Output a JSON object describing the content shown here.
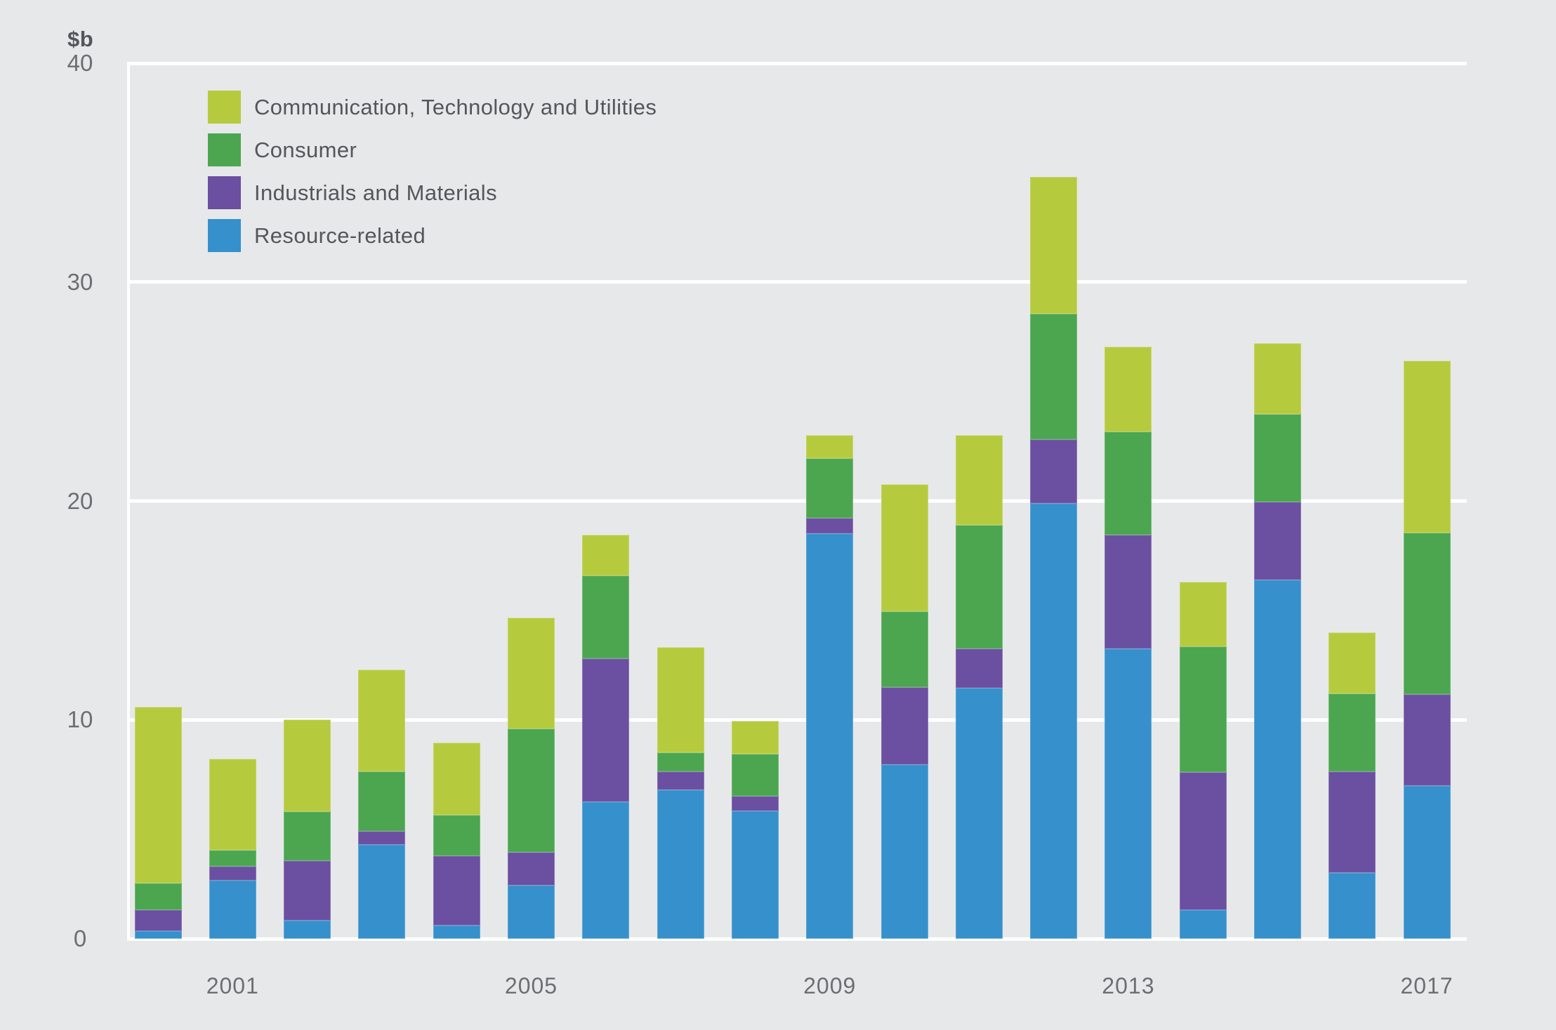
{
  "colors": {
    "background": "#e7e8e9",
    "gridline": "#ffffff",
    "axis_text": "#6d6e71",
    "label_text": "#55565a"
  },
  "chart_data": {
    "type": "bar",
    "stacked": true,
    "unit": "$b",
    "categories": [
      "2000",
      "2001",
      "2002",
      "2003",
      "2004",
      "2005",
      "2006",
      "2007",
      "2008",
      "2009",
      "2010",
      "2011",
      "2012",
      "2013",
      "2014",
      "2015",
      "2016",
      "2017"
    ],
    "x_axis_labels": [
      {
        "label": "2001",
        "category_index": 1
      },
      {
        "label": "2005",
        "category_index": 5
      },
      {
        "label": "2009",
        "category_index": 9
      },
      {
        "label": "2013",
        "category_index": 13
      },
      {
        "label": "2017",
        "category_index": 17
      }
    ],
    "yticks": [
      0,
      10,
      20,
      30,
      40
    ],
    "ylim": [
      0,
      40
    ],
    "grid": "horizontal white gridlines on light gray background",
    "legend_position": "inside top-left",
    "stack_order_bottom_to_top": [
      "Resource-related",
      "Industrials and Materials",
      "Consumer",
      "Communication, Technology and Utilities"
    ],
    "series": [
      {
        "name": "Communication, Technology and Utilities",
        "color": "#b6ca3e",
        "values": [
          8.05,
          4.15,
          4.2,
          4.65,
          3.3,
          5.05,
          1.85,
          4.8,
          1.5,
          1.05,
          5.8,
          4.1,
          6.25,
          3.9,
          2.95,
          3.25,
          2.8,
          7.85
        ]
      },
      {
        "name": "Consumer",
        "color": "#4ba64f",
        "values": [
          1.25,
          0.75,
          2.25,
          2.75,
          1.85,
          5.65,
          3.8,
          0.85,
          1.95,
          2.75,
          3.45,
          5.65,
          5.75,
          4.7,
          5.75,
          4.0,
          3.55,
          7.4
        ]
      },
      {
        "name": "Industrials and Materials",
        "color": "#6b4fa0",
        "values": [
          0.95,
          0.65,
          2.7,
          0.6,
          3.2,
          1.5,
          6.55,
          0.85,
          0.65,
          0.7,
          3.55,
          1.8,
          2.9,
          5.2,
          6.3,
          3.55,
          4.65,
          4.15
        ]
      },
      {
        "name": "Resource-related",
        "color": "#3590cc",
        "values": [
          0.35,
          2.65,
          0.85,
          4.3,
          0.6,
          2.45,
          6.25,
          6.8,
          5.85,
          18.5,
          7.95,
          11.45,
          19.9,
          13.25,
          1.3,
          16.4,
          3.0,
          7.0
        ]
      }
    ],
    "totals": [
      10.6,
      8.2,
      10.0,
      12.3,
      8.95,
      14.65,
      18.45,
      13.3,
      9.95,
      23.0,
      20.75,
      23.0,
      34.8,
      27.05,
      16.3,
      27.2,
      14.0,
      26.4
    ]
  }
}
